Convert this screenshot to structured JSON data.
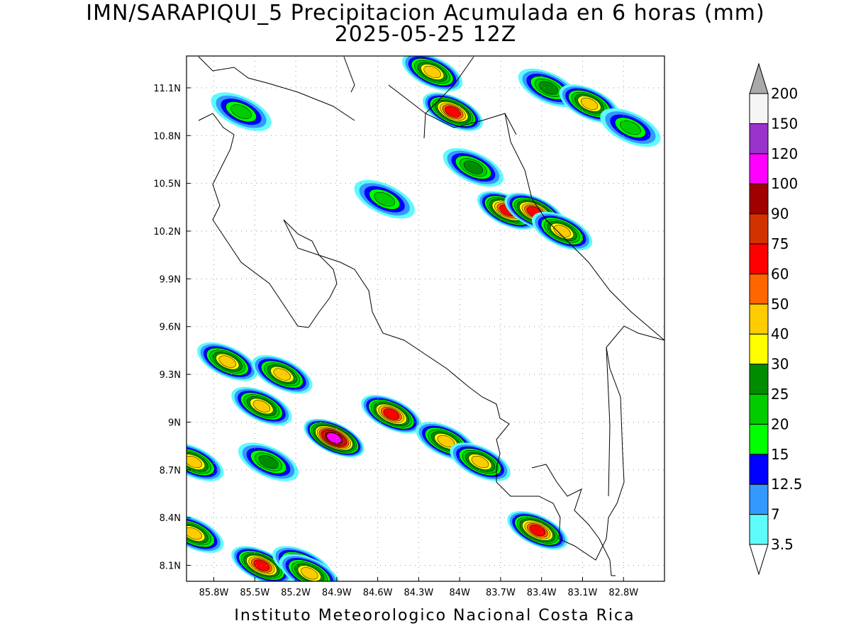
{
  "title_line1": "IMN/SARAPIQUI_5 Precipitacion Acumulada en 6 horas (mm)",
  "title_line2": "2025-05-25 12Z",
  "credit": "Instituto Meteorologico Nacional Costa Rica",
  "map": {
    "lon_range": [
      -86.0,
      -82.5
    ],
    "lat_range": [
      8.0,
      11.3
    ],
    "lat_ticks": [
      {
        "value": 11.1,
        "label": "11.1N"
      },
      {
        "value": 10.8,
        "label": "10.8N"
      },
      {
        "value": 10.5,
        "label": "10.5N"
      },
      {
        "value": 10.2,
        "label": "10.2N"
      },
      {
        "value": 9.9,
        "label": "9.9N"
      },
      {
        "value": 9.6,
        "label": "9.6N"
      },
      {
        "value": 9.3,
        "label": "9.3N"
      },
      {
        "value": 9.0,
        "label": "9N"
      },
      {
        "value": 8.7,
        "label": "8.7N"
      },
      {
        "value": 8.4,
        "label": "8.4N"
      },
      {
        "value": 8.1,
        "label": "8.1N"
      }
    ],
    "lon_ticks": [
      {
        "value": -85.8,
        "label": "85.8W"
      },
      {
        "value": -85.5,
        "label": "85.5W"
      },
      {
        "value": -85.2,
        "label": "85.2W"
      },
      {
        "value": -84.9,
        "label": "84.9W"
      },
      {
        "value": -84.6,
        "label": "84.6W"
      },
      {
        "value": -84.3,
        "label": "84.3W"
      },
      {
        "value": -84.0,
        "label": "84W"
      },
      {
        "value": -83.7,
        "label": "83.7W"
      },
      {
        "value": -83.4,
        "label": "83.4W"
      },
      {
        "value": -83.1,
        "label": "83.1W"
      },
      {
        "value": -82.8,
        "label": "82.8W"
      }
    ],
    "grid": "dotted"
  },
  "colorbar": {
    "levels": [
      {
        "label": "3.5",
        "color": "#5efbfb"
      },
      {
        "label": "7",
        "color": "#3399ff"
      },
      {
        "label": "12.5",
        "color": "#0000ff"
      },
      {
        "label": "15",
        "color": "#00ff00"
      },
      {
        "label": "20",
        "color": "#00cc00"
      },
      {
        "label": "25",
        "color": "#008c00"
      },
      {
        "label": "30",
        "color": "#ffff00"
      },
      {
        "label": "40",
        "color": "#ffcc00"
      },
      {
        "label": "50",
        "color": "#ff6600"
      },
      {
        "label": "60",
        "color": "#ff0000"
      },
      {
        "label": "75",
        "color": "#d23200"
      },
      {
        "label": "90",
        "color": "#a00000"
      },
      {
        "label": "100",
        "color": "#ff00ff"
      },
      {
        "label": "120",
        "color": "#9933cc"
      },
      {
        "label": "150",
        "color": "#f5f5f5"
      },
      {
        "label": "200",
        "color": "#a9a9a9"
      }
    ]
  },
  "precip_cells": [
    {
      "lon": -84.05,
      "lat": 10.95,
      "peak": 60
    },
    {
      "lon": -84.2,
      "lat": 11.2,
      "peak": 40
    },
    {
      "lon": -83.35,
      "lat": 11.1,
      "peak": 25
    },
    {
      "lon": -83.05,
      "lat": 11.0,
      "peak": 40
    },
    {
      "lon": -82.75,
      "lat": 10.85,
      "peak": 20
    },
    {
      "lon": -83.9,
      "lat": 10.6,
      "peak": 25
    },
    {
      "lon": -83.65,
      "lat": 10.33,
      "peak": 60
    },
    {
      "lon": -83.45,
      "lat": 10.32,
      "peak": 60
    },
    {
      "lon": -83.25,
      "lat": 10.2,
      "peak": 40
    },
    {
      "lon": -84.55,
      "lat": 10.4,
      "peak": 20
    },
    {
      "lon": -85.6,
      "lat": 10.95,
      "peak": 20
    },
    {
      "lon": -84.92,
      "lat": 8.9,
      "peak": 100
    },
    {
      "lon": -84.5,
      "lat": 9.05,
      "peak": 60
    },
    {
      "lon": -84.1,
      "lat": 8.88,
      "peak": 40
    },
    {
      "lon": -83.85,
      "lat": 8.75,
      "peak": 40
    },
    {
      "lon": -85.45,
      "lat": 9.1,
      "peak": 40
    },
    {
      "lon": -85.7,
      "lat": 9.38,
      "peak": 40
    },
    {
      "lon": -85.3,
      "lat": 9.3,
      "peak": 40
    },
    {
      "lon": -85.4,
      "lat": 8.75,
      "peak": 25
    },
    {
      "lon": -85.95,
      "lat": 8.75,
      "peak": 40
    },
    {
      "lon": -85.95,
      "lat": 8.3,
      "peak": 40
    },
    {
      "lon": -85.45,
      "lat": 8.1,
      "peak": 60
    },
    {
      "lon": -85.15,
      "lat": 8.1,
      "peak": 40
    },
    {
      "lon": -83.43,
      "lat": 8.32,
      "peak": 60
    },
    {
      "lon": -85.1,
      "lat": 8.05,
      "peak": 40
    }
  ]
}
